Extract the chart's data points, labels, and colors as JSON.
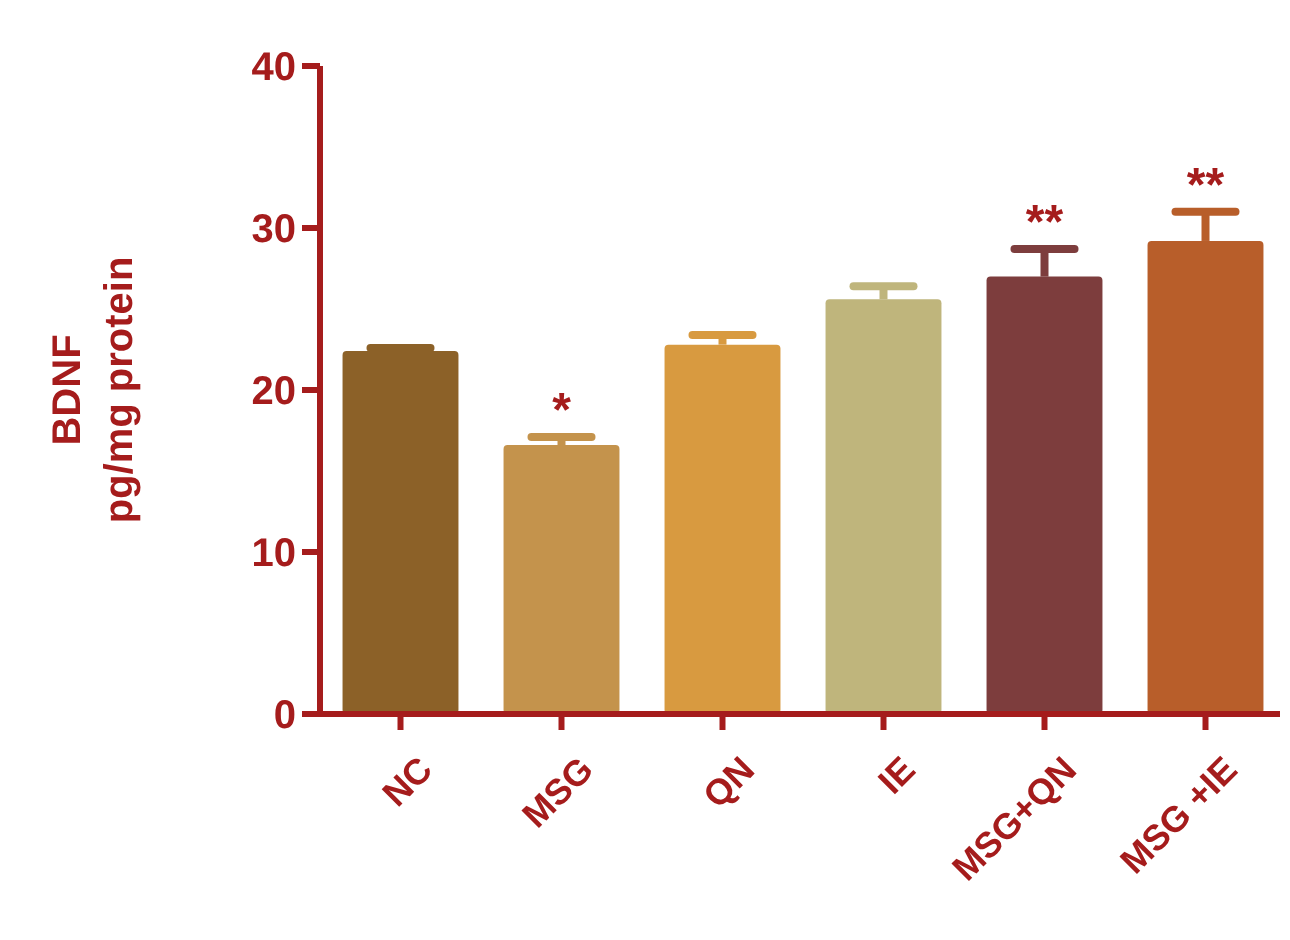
{
  "chart_data": {
    "type": "bar",
    "ylabel": "BDNF\npg/mg protein",
    "categories": [
      "NC",
      "MSG",
      "QN",
      "IE",
      "MSG+QN",
      "MSG +IE"
    ],
    "values": [
      22.4,
      16.6,
      22.8,
      25.6,
      27.0,
      29.2
    ],
    "colors": [
      "#8c6128",
      "#c4934c",
      "#d89a40",
      "#bfb57c",
      "#7d3d3d",
      "#b85e2a"
    ],
    "errors": [
      [
        22.4,
        22.6
      ],
      [
        16.6,
        17.1
      ],
      [
        22.8,
        23.4
      ],
      [
        25.6,
        26.4
      ],
      [
        27.0,
        28.7
      ],
      [
        29.2,
        31.0
      ]
    ],
    "ylim": [
      0,
      40
    ],
    "yticks": [
      0,
      10,
      20,
      30,
      40
    ],
    "grid": false,
    "annotations": [
      {
        "text": "*",
        "x": "MSG",
        "y": 17.1
      },
      {
        "text": "**",
        "x": "MSG+QN",
        "y": 28.7
      },
      {
        "text": "**",
        "x": "MSG +IE",
        "y": 31.0
      }
    ]
  }
}
